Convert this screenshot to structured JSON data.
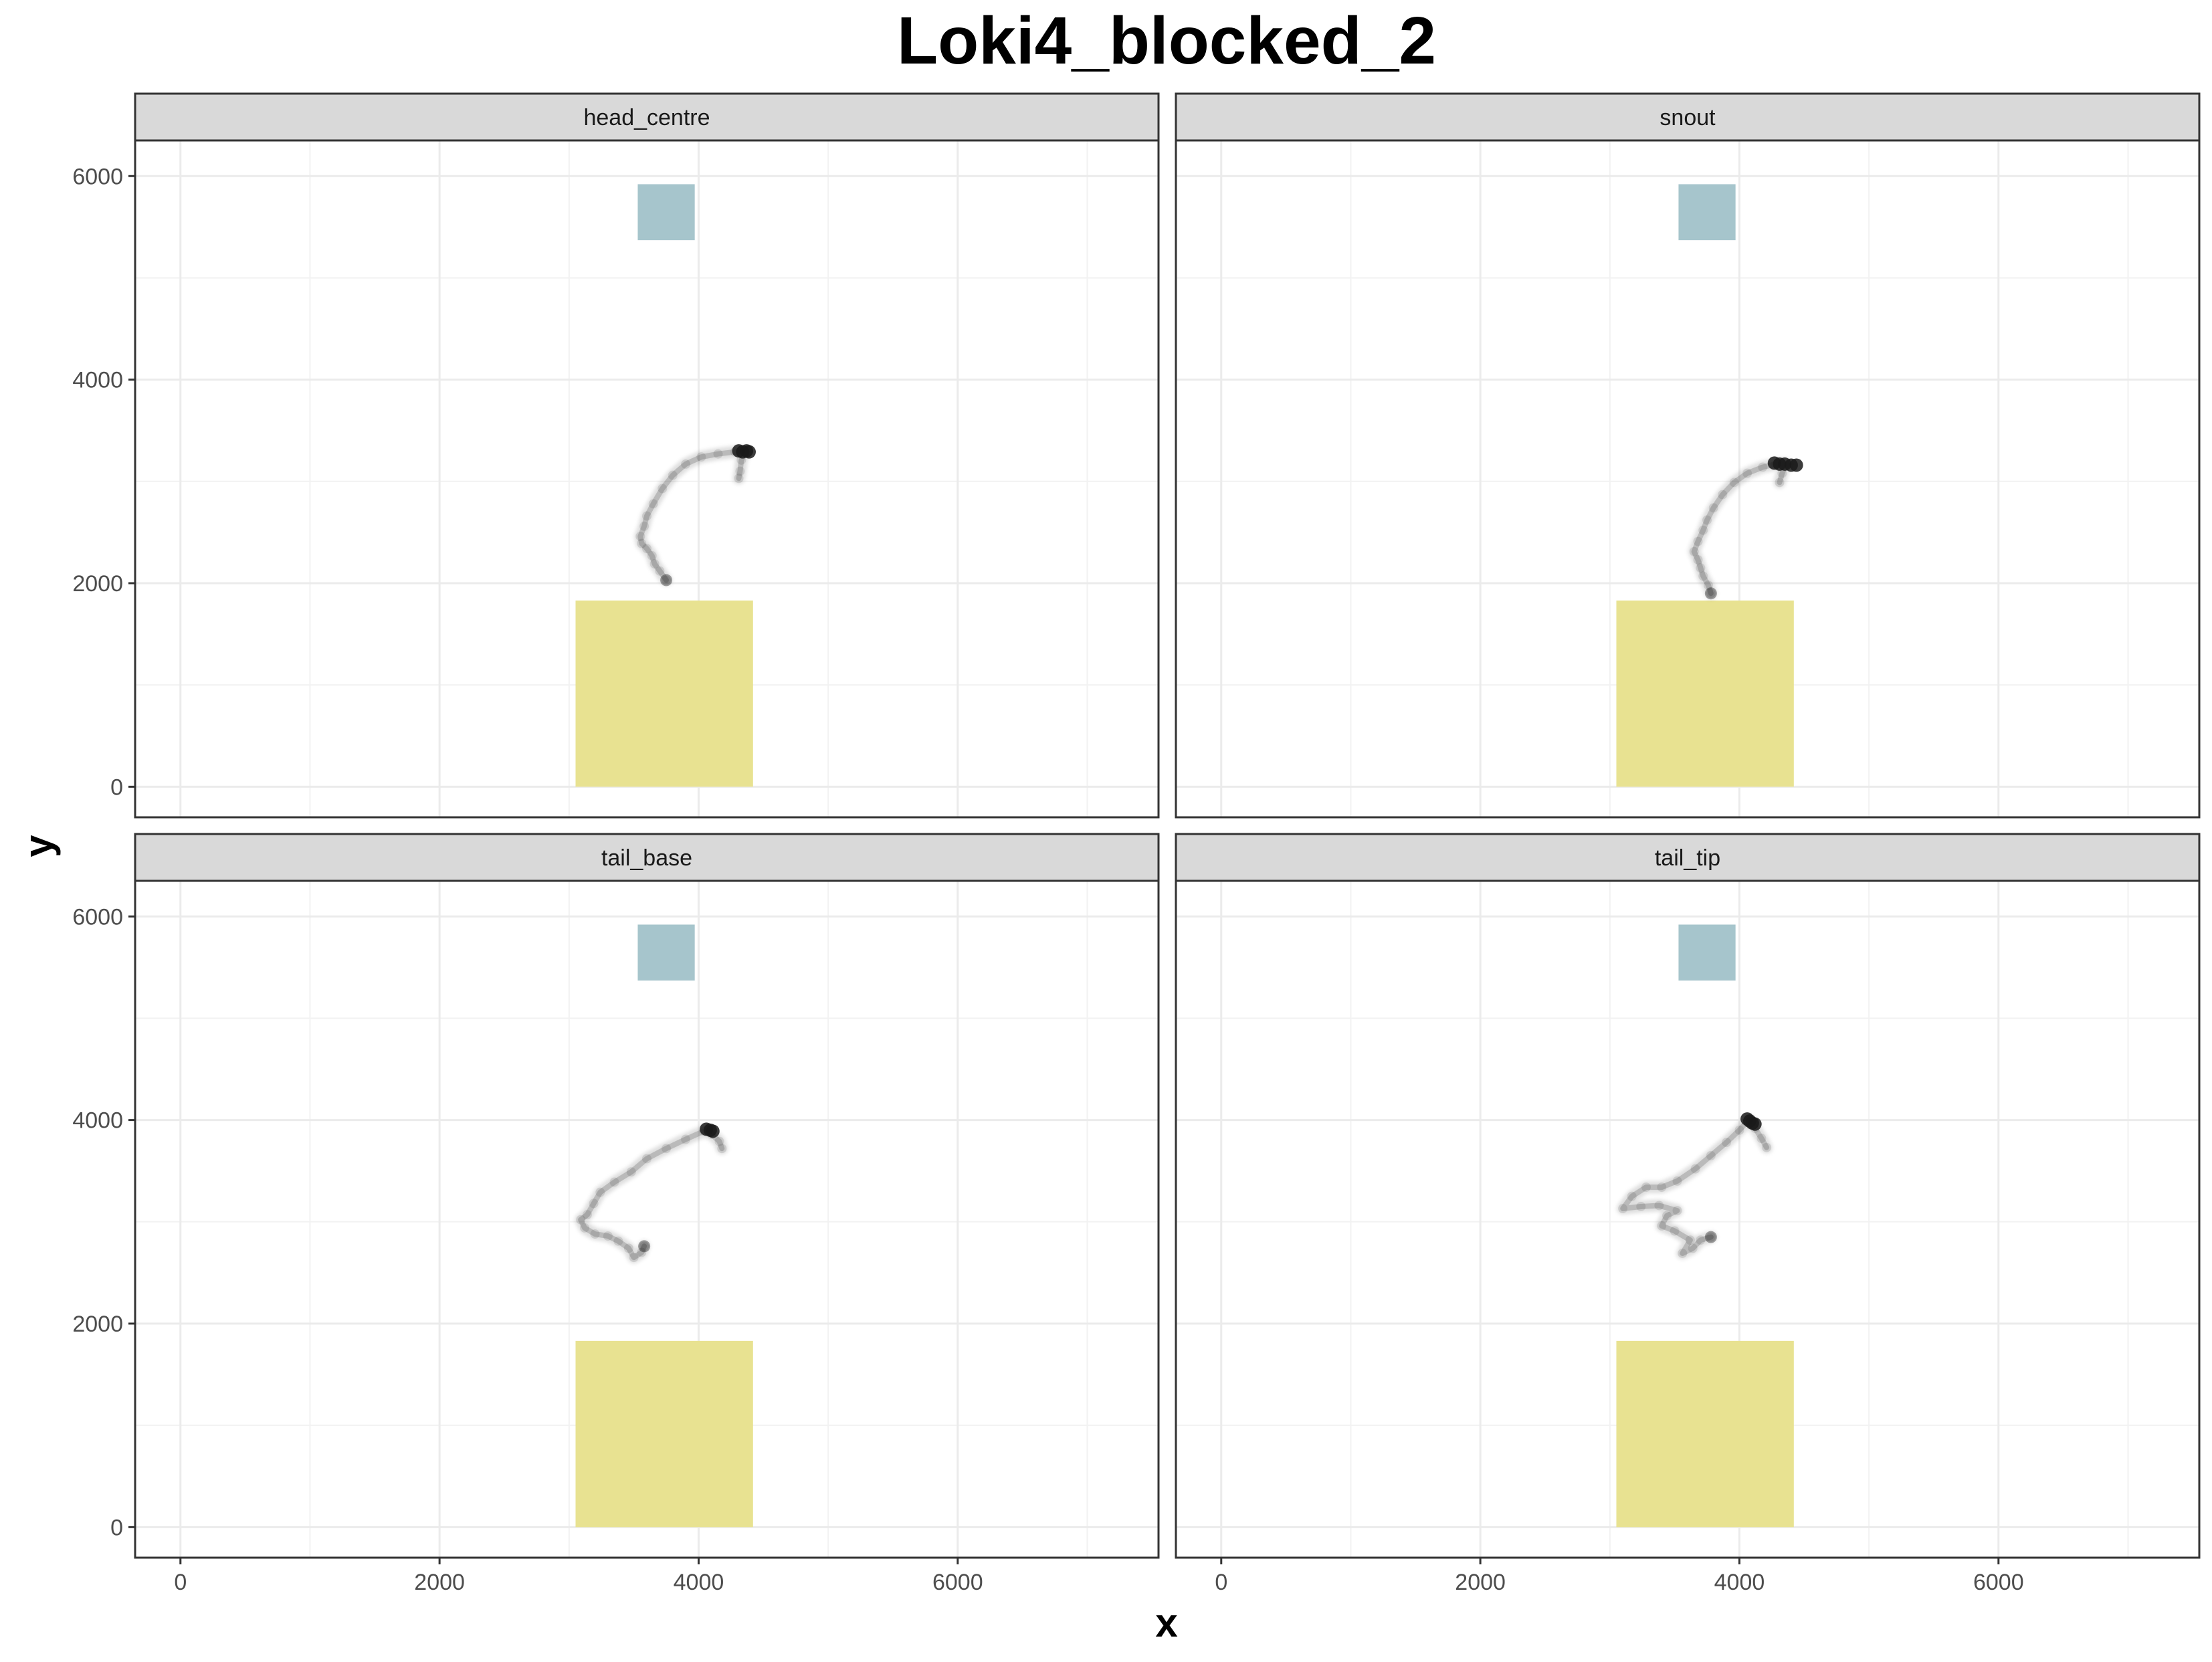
{
  "chart_data": {
    "type": "scatter",
    "title": "Loki4_blocked_2",
    "xlabel": "x",
    "ylabel": "y",
    "xlim": [
      -350,
      7550
    ],
    "ylim": [
      -300,
      6350
    ],
    "x_ticks": [
      0,
      2000,
      4000,
      6000
    ],
    "y_ticks": [
      0,
      2000,
      4000,
      6000
    ],
    "grid": true,
    "colors": {
      "zone_yellow": "#e8e291",
      "zone_blue": "#a6c5cc",
      "track": "#000000",
      "strip": "#d9d9d9"
    },
    "zones": [
      {
        "name": "lower",
        "x": [
          3050,
          4420
        ],
        "y": [
          0,
          1830
        ],
        "color": "#e8e291"
      },
      {
        "name": "upper",
        "x": [
          3530,
          3970
        ],
        "y": [
          5370,
          5920
        ],
        "color": "#a6c5cc"
      }
    ],
    "panels": [
      {
        "label": "head_centre",
        "track": [
          [
            3750,
            2030
          ],
          [
            3700,
            2120
          ],
          [
            3660,
            2190
          ],
          [
            3640,
            2270
          ],
          [
            3600,
            2340
          ],
          [
            3560,
            2390
          ],
          [
            3550,
            2460
          ],
          [
            3580,
            2560
          ],
          [
            3600,
            2660
          ],
          [
            3650,
            2780
          ],
          [
            3720,
            2930
          ],
          [
            3800,
            3060
          ],
          [
            3900,
            3170
          ],
          [
            4020,
            3240
          ],
          [
            4150,
            3270
          ],
          [
            4280,
            3290
          ],
          [
            4360,
            3290
          ],
          [
            4330,
            3210
          ],
          [
            4320,
            3100
          ],
          [
            4310,
            3030
          ]
        ],
        "cluster": [
          [
            4310,
            3300
          ],
          [
            4340,
            3290
          ],
          [
            4370,
            3300
          ],
          [
            4390,
            3290
          ]
        ]
      },
      {
        "label": "snout",
        "track": [
          [
            3780,
            1900
          ],
          [
            3760,
            1980
          ],
          [
            3720,
            2070
          ],
          [
            3700,
            2150
          ],
          [
            3680,
            2230
          ],
          [
            3650,
            2310
          ],
          [
            3680,
            2410
          ],
          [
            3720,
            2520
          ],
          [
            3750,
            2620
          ],
          [
            3800,
            2740
          ],
          [
            3870,
            2870
          ],
          [
            3960,
            2990
          ],
          [
            4060,
            3080
          ],
          [
            4180,
            3140
          ],
          [
            4280,
            3170
          ],
          [
            4360,
            3170
          ],
          [
            4330,
            3080
          ],
          [
            4310,
            2990
          ]
        ],
        "cluster": [
          [
            4270,
            3180
          ],
          [
            4310,
            3170
          ],
          [
            4350,
            3170
          ],
          [
            4400,
            3160
          ],
          [
            4440,
            3160
          ]
        ]
      },
      {
        "label": "tail_base",
        "track": [
          [
            3580,
            2760
          ],
          [
            3560,
            2700
          ],
          [
            3500,
            2650
          ],
          [
            3460,
            2740
          ],
          [
            3380,
            2810
          ],
          [
            3300,
            2860
          ],
          [
            3200,
            2880
          ],
          [
            3120,
            2940
          ],
          [
            3090,
            3020
          ],
          [
            3140,
            3070
          ],
          [
            3190,
            3180
          ],
          [
            3240,
            3290
          ],
          [
            3350,
            3390
          ],
          [
            3480,
            3490
          ],
          [
            3600,
            3620
          ],
          [
            3750,
            3720
          ],
          [
            3900,
            3810
          ],
          [
            4040,
            3890
          ],
          [
            4100,
            3860
          ],
          [
            4160,
            3790
          ],
          [
            4180,
            3720
          ]
        ],
        "cluster": [
          [
            4060,
            3910
          ],
          [
            4090,
            3900
          ],
          [
            4110,
            3890
          ]
        ]
      },
      {
        "label": "tail_tip",
        "track": [
          [
            3780,
            2850
          ],
          [
            3700,
            2820
          ],
          [
            3640,
            2740
          ],
          [
            3560,
            2690
          ],
          [
            3620,
            2820
          ],
          [
            3500,
            2910
          ],
          [
            3400,
            2960
          ],
          [
            3440,
            3060
          ],
          [
            3520,
            3110
          ],
          [
            3380,
            3160
          ],
          [
            3240,
            3150
          ],
          [
            3100,
            3130
          ],
          [
            3170,
            3250
          ],
          [
            3280,
            3340
          ],
          [
            3400,
            3340
          ],
          [
            3520,
            3400
          ],
          [
            3660,
            3520
          ],
          [
            3780,
            3650
          ],
          [
            3900,
            3780
          ],
          [
            4000,
            3900
          ],
          [
            4070,
            4000
          ],
          [
            4120,
            3920
          ],
          [
            4170,
            3820
          ],
          [
            4210,
            3730
          ]
        ],
        "cluster": [
          [
            4060,
            4010
          ],
          [
            4080,
            3990
          ],
          [
            4100,
            3970
          ],
          [
            4120,
            3960
          ]
        ]
      }
    ]
  }
}
